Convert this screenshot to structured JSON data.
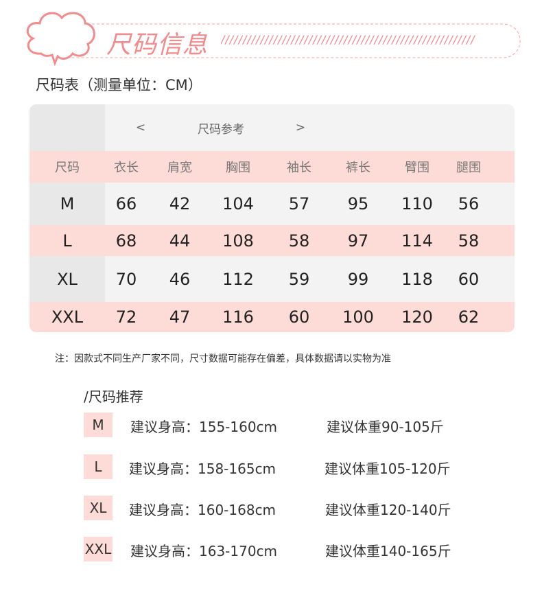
{
  "banner": {
    "title": "尺码信息",
    "slashes": "//////////////////////////////////////////////////////////"
  },
  "subtitle": "尺码表（测量单位：CM）",
  "table": {
    "caption": "尺码参考",
    "prev": "<",
    "next": ">",
    "headers": [
      "尺码",
      "衣长",
      "肩宽",
      "胸围",
      "袖长",
      "裤长",
      "臂围",
      "腿围"
    ],
    "rows": [
      [
        "M",
        "66",
        "42",
        "104",
        "57",
        "95",
        "110",
        "56"
      ],
      [
        "L",
        "68",
        "44",
        "108",
        "58",
        "97",
        "114",
        "58"
      ],
      [
        "XL",
        "70",
        "46",
        "112",
        "59",
        "99",
        "118",
        "60"
      ],
      [
        "XXL",
        "72",
        "47",
        "116",
        "60",
        "100",
        "120",
        "62"
      ]
    ]
  },
  "note": "注：因款式不同生产厂家不同，尺寸数据可能存在偏差，具体数据请以实物为准",
  "recommend": {
    "title": "/尺码推荐",
    "items": [
      {
        "size": "M",
        "height": "建议身高：155-160cm",
        "weight": "建议体重90-105斤"
      },
      {
        "size": "L",
        "height": "建议身高：158-165cm",
        "weight": "建议体重105-120斤"
      },
      {
        "size": "XL",
        "height": "建议身高：160-168cm",
        "weight": "建议体重120-140斤"
      },
      {
        "size": "XXL",
        "height": "建议身高：163-170cm",
        "weight": "建议体重140-165斤"
      }
    ]
  },
  "colors": {
    "accent": "#f28b8b",
    "pink_row": "#fddcd8",
    "gray_row": "#f3f3f3"
  }
}
